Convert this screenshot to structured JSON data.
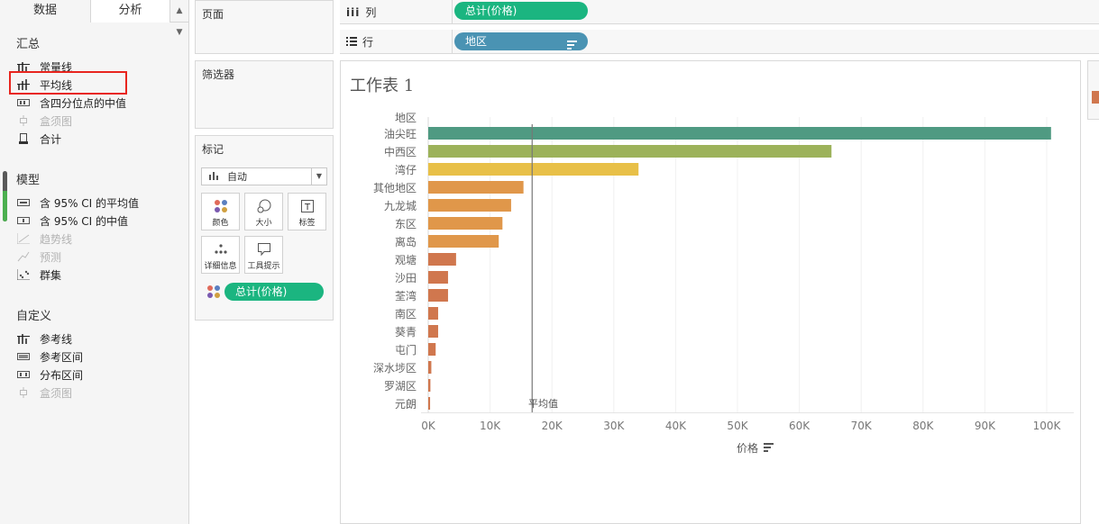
{
  "left_pane": {
    "tabs": {
      "data": "数据",
      "analysis": "分析",
      "sort_icon": "sort-updown-icon"
    },
    "sections": {
      "summary": {
        "title": "汇总",
        "items": [
          {
            "label": "常量线",
            "icon": "constant-line-icon",
            "disabled": false
          },
          {
            "label": "平均线",
            "icon": "average-line-icon",
            "disabled": false
          },
          {
            "label": "含四分位点的中值",
            "icon": "median-quartiles-icon",
            "disabled": false
          },
          {
            "label": "盒须图",
            "icon": "box-plot-icon",
            "disabled": true
          },
          {
            "label": "合计",
            "icon": "totals-icon",
            "disabled": false
          }
        ]
      },
      "model": {
        "title": "模型",
        "items": [
          {
            "label": "含 95% CI 的平均值",
            "icon": "average-ci-icon",
            "disabled": false
          },
          {
            "label": "含 95% CI 的中值",
            "icon": "median-ci-icon",
            "disabled": false
          },
          {
            "label": "趋势线",
            "icon": "trend-line-icon",
            "disabled": true
          },
          {
            "label": "预测",
            "icon": "forecast-icon",
            "disabled": true
          },
          {
            "label": "群集",
            "icon": "cluster-icon",
            "disabled": false
          }
        ]
      },
      "custom": {
        "title": "自定义",
        "items": [
          {
            "label": "参考线",
            "icon": "reference-line-icon",
            "disabled": false
          },
          {
            "label": "参考区间",
            "icon": "reference-band-icon",
            "disabled": false
          },
          {
            "label": "分布区间",
            "icon": "distribution-band-icon",
            "disabled": false
          },
          {
            "label": "盒须图",
            "icon": "box-plot-icon",
            "disabled": true
          }
        ]
      }
    }
  },
  "cards": {
    "pages": {
      "title": "页面"
    },
    "filters": {
      "title": "筛选器"
    },
    "marks": {
      "title": "标记",
      "mark_type": "自动",
      "buttons": {
        "color": "颜色",
        "size": "大小",
        "label": "标签",
        "detail": "详细信息",
        "tooltip": "工具提示"
      },
      "color_pill": "总计(价格)"
    }
  },
  "shelves": {
    "columns": {
      "label": "列",
      "pill": "总计(价格)"
    },
    "rows": {
      "label": "行",
      "pill": "地区"
    }
  },
  "view": {
    "sheet_title": "工作表 1",
    "row_header": "地区",
    "reference_line_label": "平均值",
    "x_axis_title": "价格"
  },
  "chart_data": {
    "type": "bar",
    "orientation": "horizontal",
    "title": "工作表 1",
    "ylabel": "地区",
    "xlabel": "价格",
    "categories": [
      "油尖旺",
      "中西区",
      "湾仔",
      "其他地区",
      "九龙城",
      "东区",
      "离岛",
      "观塘",
      "沙田",
      "荃湾",
      "南区",
      "葵青",
      "屯门",
      "深水埗区",
      "罗湖区",
      "元朗"
    ],
    "values": [
      100700,
      65200,
      34000,
      15400,
      13400,
      12000,
      11400,
      4500,
      3200,
      3200,
      1600,
      1600,
      1200,
      500,
      350,
      300
    ],
    "colors": [
      "#4f9a82",
      "#9cb25a",
      "#e8c048",
      "#e0974a",
      "#e0974a",
      "#e0974a",
      "#e0974a",
      "#d0774e",
      "#d0774e",
      "#d0774e",
      "#d0774e",
      "#d0774e",
      "#d0774e",
      "#d0774e",
      "#d0774e",
      "#d0774e"
    ],
    "xlim": [
      0,
      105000
    ],
    "xticks": [
      0,
      10000,
      20000,
      30000,
      40000,
      50000,
      60000,
      70000,
      80000,
      90000,
      100000
    ],
    "xtick_labels": [
      "0K",
      "10K",
      "20K",
      "30K",
      "40K",
      "50K",
      "60K",
      "70K",
      "80K",
      "90K",
      "100K"
    ],
    "reference_line": {
      "label": "平均值",
      "value": 16800
    },
    "grid": true
  }
}
